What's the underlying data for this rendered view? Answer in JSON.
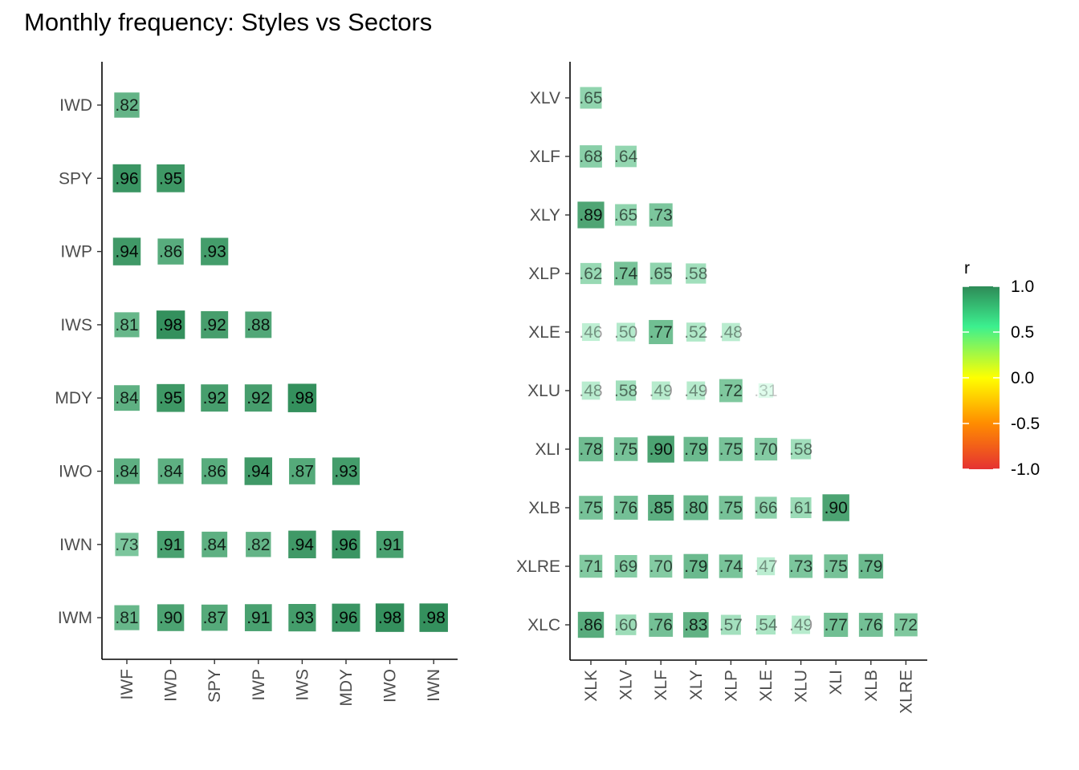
{
  "title": "Monthly frequency: Styles vs Sectors",
  "chart_data": [
    {
      "type": "heatmap",
      "name": "Styles",
      "rows": [
        "IWD",
        "SPY",
        "IWP",
        "IWS",
        "MDY",
        "IWO",
        "IWN",
        "IWM"
      ],
      "cols": [
        "IWF",
        "IWD",
        "SPY",
        "IWP",
        "IWS",
        "MDY",
        "IWO",
        "IWN"
      ],
      "values": [
        [
          0.82
        ],
        [
          0.96,
          0.95
        ],
        [
          0.94,
          0.86,
          0.93
        ],
        [
          0.81,
          0.98,
          0.92,
          0.88
        ],
        [
          0.84,
          0.95,
          0.92,
          0.92,
          0.98
        ],
        [
          0.84,
          0.84,
          0.86,
          0.94,
          0.87,
          0.93
        ],
        [
          0.73,
          0.91,
          0.84,
          0.82,
          0.94,
          0.96,
          0.91
        ],
        [
          0.81,
          0.9,
          0.87,
          0.91,
          0.93,
          0.96,
          0.98,
          0.98
        ]
      ],
      "labels": [
        [
          ".82"
        ],
        [
          ".96",
          ".95"
        ],
        [
          ".94",
          ".86",
          ".93"
        ],
        [
          ".81",
          ".98",
          ".92",
          ".88"
        ],
        [
          ".84",
          ".95",
          ".92",
          ".92",
          ".98"
        ],
        [
          ".84",
          ".84",
          ".86",
          ".94",
          ".87",
          ".93"
        ],
        [
          ".73",
          ".91",
          ".84",
          ".82",
          ".94",
          ".96",
          ".91"
        ],
        [
          ".81",
          ".90",
          ".87",
          ".91",
          ".93",
          ".96",
          ".98",
          ".98"
        ]
      ]
    },
    {
      "type": "heatmap",
      "name": "Sectors",
      "rows": [
        "XLV",
        "XLF",
        "XLY",
        "XLP",
        "XLE",
        "XLU",
        "XLI",
        "XLB",
        "XLRE",
        "XLC"
      ],
      "cols": [
        "XLK",
        "XLV",
        "XLF",
        "XLY",
        "XLP",
        "XLE",
        "XLU",
        "XLI",
        "XLB",
        "XLRE"
      ],
      "values": [
        [
          0.65
        ],
        [
          0.68,
          0.64
        ],
        [
          0.89,
          0.65,
          0.73
        ],
        [
          0.62,
          0.74,
          0.65,
          0.58
        ],
        [
          0.46,
          0.5,
          0.77,
          0.52,
          0.48
        ],
        [
          0.48,
          0.58,
          0.49,
          0.49,
          0.72,
          0.31
        ],
        [
          0.78,
          0.75,
          0.9,
          0.79,
          0.75,
          0.7,
          0.58
        ],
        [
          0.75,
          0.76,
          0.85,
          0.8,
          0.75,
          0.66,
          0.61,
          0.9
        ],
        [
          0.71,
          0.69,
          0.7,
          0.79,
          0.74,
          0.47,
          0.73,
          0.75,
          0.79
        ],
        [
          0.86,
          0.6,
          0.76,
          0.83,
          0.57,
          0.54,
          0.49,
          0.77,
          0.76,
          0.72
        ]
      ],
      "labels": [
        [
          ".65"
        ],
        [
          ".68",
          ".64"
        ],
        [
          ".89",
          ".65",
          ".73"
        ],
        [
          ".62",
          ".74",
          ".65",
          ".58"
        ],
        [
          ".46",
          ".50",
          ".77",
          ".52",
          ".48"
        ],
        [
          ".48",
          ".58",
          ".49",
          ".49",
          ".72",
          ".31"
        ],
        [
          ".78",
          ".75",
          ".90",
          ".79",
          ".75",
          ".70",
          ".58"
        ],
        [
          ".75",
          ".76",
          ".85",
          ".80",
          ".75",
          ".66",
          ".61",
          ".90"
        ],
        [
          ".71",
          ".69",
          ".70",
          ".79",
          ".74",
          ".47",
          ".73",
          ".75",
          ".79"
        ],
        [
          ".86",
          ".60",
          ".76",
          ".83",
          ".57",
          ".54",
          ".49",
          ".77",
          ".76",
          ".72"
        ]
      ]
    }
  ],
  "legend": {
    "title": "r",
    "ticks": [
      "1.0",
      "0.5",
      "0.0",
      "-0.5",
      "-1.0"
    ],
    "tick_values": [
      1.0,
      0.5,
      0.0,
      -0.5,
      -1.0
    ],
    "gradient_colors": [
      "#2e8b57",
      "#3cf08f",
      "#ffff00",
      "#ff8c00",
      "#e53232"
    ]
  }
}
